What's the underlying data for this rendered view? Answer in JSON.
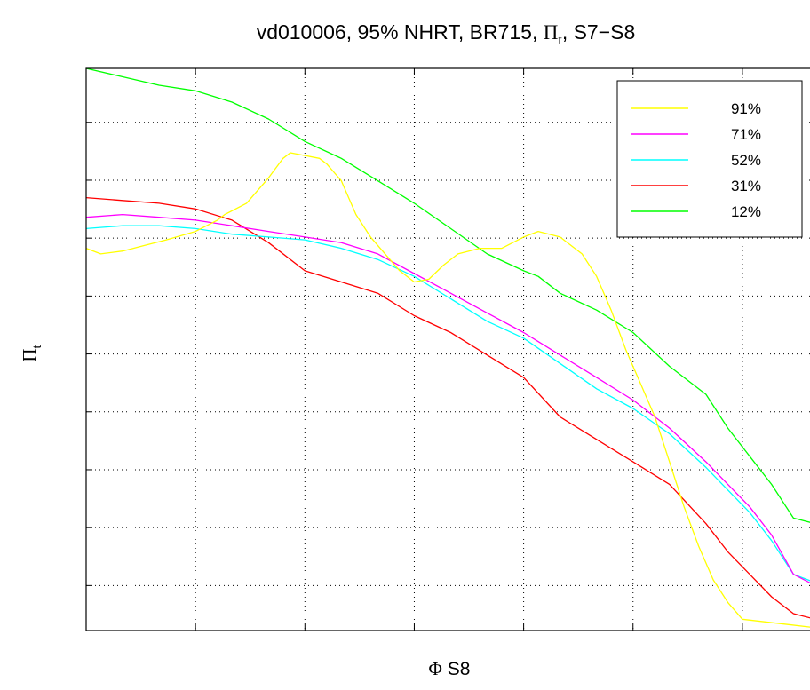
{
  "chart_data": {
    "type": "line",
    "title": {
      "prefix": "vd010006, 95% NHRT, BR715,",
      "symbol": "Π",
      "subscript": "t",
      "suffix": ", S7−S8"
    },
    "xlabel": {
      "symbol": "Φ",
      "text": " S8"
    },
    "ylabel": {
      "symbol": "Π",
      "subscript": "t"
    },
    "xlim": [
      0,
      100
    ],
    "ylim": [
      0,
      100
    ],
    "x_ticks": [
      15,
      30,
      45,
      60,
      75,
      90
    ],
    "y_ticks": [
      8,
      18.3,
      28.6,
      38.9,
      49.2,
      59.5,
      69.8,
      80.1,
      90.4
    ],
    "x_tick_labels_shown": false,
    "y_tick_labels_shown": false,
    "grid": true,
    "legend_position": "top-right",
    "series": [
      {
        "name": "91%",
        "color": "#ffff00",
        "points": [
          [
            0,
            68
          ],
          [
            2,
            67
          ],
          [
            5,
            67.5
          ],
          [
            8,
            68.5
          ],
          [
            11,
            69.5
          ],
          [
            15,
            71
          ],
          [
            18,
            73
          ],
          [
            19,
            74
          ],
          [
            22,
            76
          ],
          [
            25,
            80.5
          ],
          [
            27,
            84
          ],
          [
            28,
            85
          ],
          [
            30,
            84.5
          ],
          [
            32,
            84
          ],
          [
            33,
            83
          ],
          [
            35,
            80
          ],
          [
            37,
            74
          ],
          [
            39,
            70
          ],
          [
            41,
            67
          ],
          [
            43,
            64
          ],
          [
            45,
            62
          ],
          [
            47,
            62.5
          ],
          [
            49,
            65
          ],
          [
            51,
            67
          ],
          [
            54,
            68
          ],
          [
            57,
            68
          ],
          [
            60,
            70
          ],
          [
            62,
            71
          ],
          [
            65,
            70
          ],
          [
            68,
            67
          ],
          [
            70,
            63
          ],
          [
            72,
            57
          ],
          [
            74,
            50
          ],
          [
            76,
            44
          ],
          [
            78,
            38
          ],
          [
            80,
            30
          ],
          [
            82,
            22
          ],
          [
            84,
            15
          ],
          [
            86,
            9
          ],
          [
            88,
            5
          ],
          [
            90,
            2
          ],
          [
            100,
            0.5
          ]
        ]
      },
      {
        "name": "71%",
        "color": "#ff00ff",
        "points": [
          [
            0,
            73.5
          ],
          [
            5,
            74
          ],
          [
            10,
            73.5
          ],
          [
            15,
            73
          ],
          [
            20,
            72
          ],
          [
            25,
            71
          ],
          [
            30,
            70
          ],
          [
            35,
            69
          ],
          [
            40,
            67
          ],
          [
            45,
            63.5
          ],
          [
            50,
            60
          ],
          [
            55,
            56.5
          ],
          [
            60,
            53
          ],
          [
            65,
            49
          ],
          [
            70,
            45
          ],
          [
            75,
            41
          ],
          [
            80,
            36
          ],
          [
            85,
            30
          ],
          [
            88,
            26
          ],
          [
            91,
            22
          ],
          [
            94,
            17
          ],
          [
            97,
            10
          ],
          [
            100,
            8
          ]
        ]
      },
      {
        "name": "52%",
        "color": "#00ffff",
        "points": [
          [
            0,
            71.5
          ],
          [
            5,
            72
          ],
          [
            10,
            72
          ],
          [
            15,
            71.5
          ],
          [
            20,
            70.5
          ],
          [
            25,
            70
          ],
          [
            30,
            69.5
          ],
          [
            35,
            68
          ],
          [
            40,
            66
          ],
          [
            45,
            63
          ],
          [
            50,
            59
          ],
          [
            55,
            55
          ],
          [
            60,
            52
          ],
          [
            65,
            47.5
          ],
          [
            70,
            43
          ],
          [
            75,
            39.5
          ],
          [
            80,
            35
          ],
          [
            85,
            29
          ],
          [
            88,
            25
          ],
          [
            91,
            21
          ],
          [
            94,
            16
          ],
          [
            97,
            10
          ],
          [
            100,
            8.5
          ]
        ]
      },
      {
        "name": "31%",
        "color": "#ff0000",
        "points": [
          [
            0,
            77
          ],
          [
            5,
            76.5
          ],
          [
            10,
            76
          ],
          [
            15,
            75
          ],
          [
            20,
            73
          ],
          [
            25,
            69
          ],
          [
            30,
            64
          ],
          [
            35,
            62
          ],
          [
            40,
            60
          ],
          [
            45,
            56
          ],
          [
            50,
            53
          ],
          [
            55,
            49
          ],
          [
            60,
            45
          ],
          [
            65,
            38
          ],
          [
            70,
            34
          ],
          [
            75,
            30
          ],
          [
            80,
            26
          ],
          [
            85,
            19
          ],
          [
            88,
            14
          ],
          [
            91,
            10
          ],
          [
            94,
            6
          ],
          [
            97,
            3
          ],
          [
            100,
            2
          ]
        ]
      },
      {
        "name": "12%",
        "color": "#00ff00",
        "points": [
          [
            0,
            100
          ],
          [
            5,
            98.5
          ],
          [
            10,
            97
          ],
          [
            15,
            96
          ],
          [
            20,
            94
          ],
          [
            25,
            91
          ],
          [
            30,
            87
          ],
          [
            35,
            84
          ],
          [
            40,
            80
          ],
          [
            45,
            76
          ],
          [
            50,
            71.5
          ],
          [
            55,
            67
          ],
          [
            60,
            64
          ],
          [
            62,
            63
          ],
          [
            65,
            60
          ],
          [
            70,
            57
          ],
          [
            75,
            53
          ],
          [
            80,
            47
          ],
          [
            85,
            42
          ],
          [
            88,
            36
          ],
          [
            91,
            31
          ],
          [
            94,
            26
          ],
          [
            97,
            20
          ],
          [
            100,
            19
          ]
        ]
      }
    ]
  }
}
